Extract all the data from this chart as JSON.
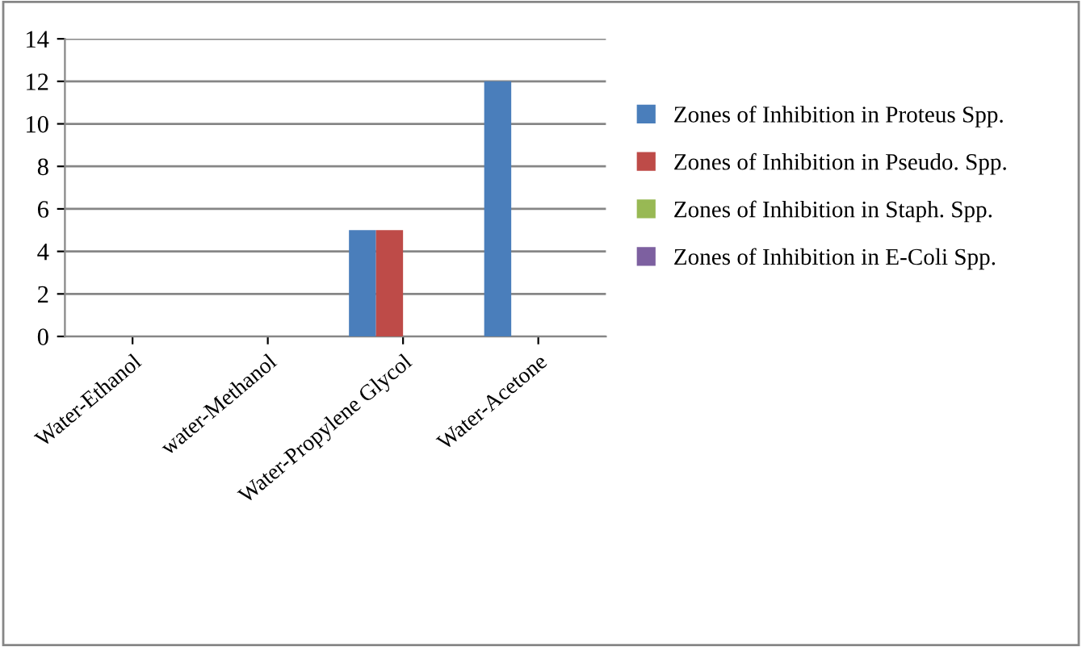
{
  "chart_data": {
    "type": "bar",
    "categories": [
      "Water-Ethanol",
      "water-Methanol",
      "Water-Propylene Glycol",
      "Water-Acetone"
    ],
    "series": [
      {
        "name": "Zones of Inhibition in Proteus Spp.",
        "color": "#4a7ebb",
        "values": [
          0,
          0,
          5,
          12
        ]
      },
      {
        "name": "Zones of Inhibition in Pseudo. Spp.",
        "color": "#be4b48",
        "values": [
          0,
          0,
          5,
          0
        ]
      },
      {
        "name": "Zones of Inhibition in Staph. Spp.",
        "color": "#98b954",
        "values": [
          0,
          0,
          0,
          0
        ]
      },
      {
        "name": "Zones of Inhibition in E-Coli Spp.",
        "color": "#7d60a0",
        "values": [
          0,
          0,
          0,
          0
        ]
      }
    ],
    "ylim": [
      0,
      14
    ],
    "yticks": [
      0,
      2,
      4,
      6,
      8,
      10,
      12,
      14
    ],
    "grid": "y",
    "legend": "right"
  }
}
